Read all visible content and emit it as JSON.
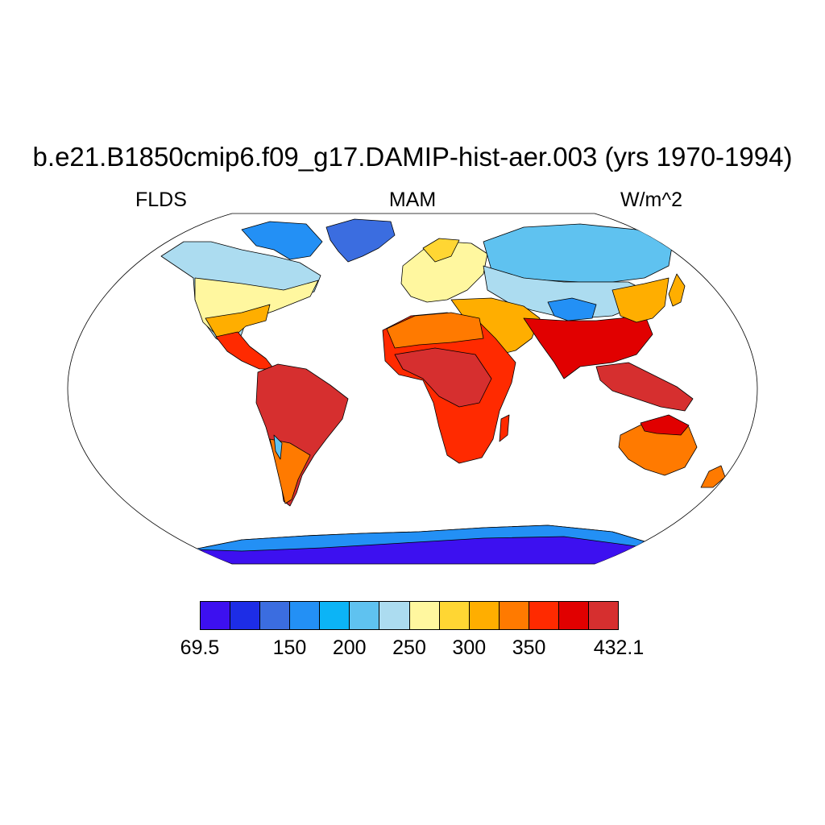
{
  "title": "b.e21.B1850cmip6.f09_g17.DAMIP-hist-aer.003 (yrs 1970-1994)",
  "subtitles": {
    "left": "FLDS",
    "center": "MAM",
    "right": "W/m^2"
  },
  "map": {
    "projection": "robinson",
    "variable": "FLDS",
    "season": "MAM",
    "units": "W/m^2"
  },
  "colorbar": {
    "colors": [
      "#3d10f0",
      "#1d2de6",
      "#3b6de0",
      "#2390f5",
      "#0cb4f6",
      "#5fc2f0",
      "#acdcf0",
      "#fff79f",
      "#ffd633",
      "#ffae00",
      "#ff7a00",
      "#ff2a00",
      "#e10000",
      "#d62f2f"
    ],
    "labels": [
      {
        "text": "69.5",
        "index": 0
      },
      {
        "text": "150",
        "index": 3
      },
      {
        "text": "200",
        "index": 5
      },
      {
        "text": "250",
        "index": 7
      },
      {
        "text": "300",
        "index": 9
      },
      {
        "text": "350",
        "index": 11
      },
      {
        "text": "432.1",
        "index": 14
      }
    ]
  }
}
